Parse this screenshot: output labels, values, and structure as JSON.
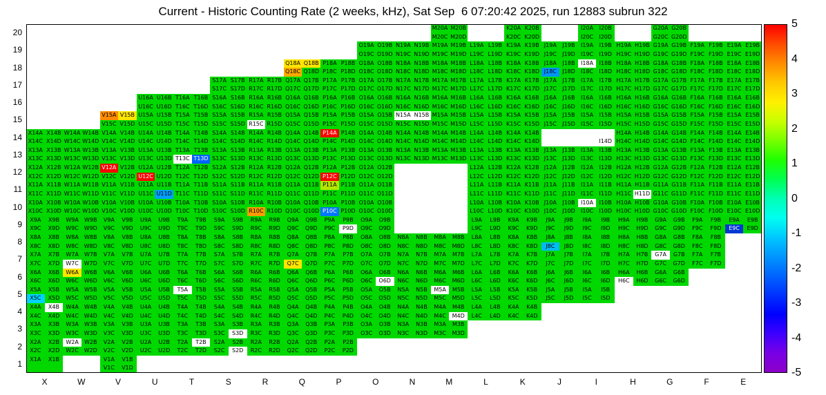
{
  "title": "Current - Historic Counting Rate (2 weeks, kHz), Sat Sep  6 07:20:42 2025, run 12883 subrun 322",
  "colors": {
    "cell_default": "#00d800",
    "background": "#ffffff",
    "frame": "#000000"
  },
  "axes": {
    "x": [
      "X",
      "W",
      "V",
      "U",
      "T",
      "S",
      "R",
      "Q",
      "P",
      "O",
      "N",
      "M",
      "L",
      "K",
      "J",
      "I",
      "H",
      "G",
      "F",
      "E"
    ],
    "y": [
      20,
      19,
      18,
      17,
      16,
      15,
      14,
      13,
      12,
      11,
      10,
      9,
      8,
      7,
      6,
      5,
      4,
      3,
      2,
      1
    ]
  },
  "suffixes": [
    "A",
    "B",
    "C",
    "D"
  ],
  "colorbar": {
    "ticks": [
      5,
      4,
      3,
      2,
      1,
      0,
      -1,
      -2,
      -3,
      -4,
      -5
    ],
    "stops": [
      "#ff0000",
      "#ff4b00",
      "#ff8c00",
      "#ffc800",
      "#fff000",
      "#c8ff00",
      "#78ff00",
      "#1eff00",
      "#00ff50",
      "#00ffb4",
      "#00fff0",
      "#00c8ff",
      "#0096ff",
      "#0064ff",
      "#0032ff",
      "#0000ff",
      "#3c00ff",
      "#7800e6",
      "#8c00c8"
    ]
  },
  "grid": {
    "rows": [
      {
        "row": 20,
        "cols": [
          "M",
          "K",
          "I",
          "G"
        ]
      },
      {
        "row": 19,
        "from": "O",
        "to": "E"
      },
      {
        "row": 18,
        "from": "Q",
        "to": "E"
      },
      {
        "row": 17,
        "from": "S",
        "to": "E"
      },
      {
        "row": 16,
        "from": "U",
        "to": "E"
      },
      {
        "row": 15,
        "from": "V",
        "to": "E"
      },
      {
        "row": 14,
        "from": "X",
        "to": "E",
        "blank_subs": [
          "J14A",
          "J14B",
          "J14C",
          "J14D",
          "I14A",
          "I14B",
          "I14C"
        ]
      },
      {
        "row": 13,
        "from": "X",
        "to": "E"
      },
      {
        "row": 12,
        "from": "X",
        "to": "E",
        "blank_cols": [
          "N",
          "M"
        ]
      },
      {
        "row": 11,
        "from": "X",
        "to": "E",
        "blank_cols": [
          "N",
          "M"
        ]
      },
      {
        "row": 10,
        "from": "X",
        "to": "E",
        "blank_cols": [
          "N",
          "M"
        ]
      },
      {
        "row": 9,
        "from": "X",
        "to": "E",
        "blank_cols": [
          "N",
          "M"
        ]
      },
      {
        "row": 8,
        "from": "X",
        "to": "F"
      },
      {
        "row": 7,
        "from": "X",
        "to": "F"
      },
      {
        "row": 6,
        "from": "X",
        "to": "G"
      },
      {
        "row": 5,
        "from": "X",
        "to": "I"
      },
      {
        "row": 4,
        "from": "X",
        "to": "K"
      },
      {
        "row": 3,
        "from": "X",
        "to": "M"
      },
      {
        "row": 2,
        "from": "X",
        "to": "P"
      },
      {
        "row": 1,
        "cols": [
          "X",
          "V"
        ],
        "unlabeled_subs": [
          "X1C",
          "X1D"
        ]
      }
    ],
    "specials": {
      "V15A": "#ff8c00",
      "V15B": "#ffe600",
      "Q18A": "#ffe600",
      "Q18B": "#ffe600",
      "Q18C": "#ffaa00",
      "W6A": "#ffe600",
      "Q7C": "#ffe600",
      "R10C": "#ff9b00",
      "P11A": "#b4e600",
      "V12A": "#ff0000",
      "U12C": "#ff0000",
      "P14A": "#ff0000",
      "P12C": "#ff0000",
      "T13D": "#0064ff",
      "U11D": "#00a0ff",
      "P10C": "#0078ff",
      "J8C": "#00bcf2",
      "J18C": "#0096ff",
      "E9C": "#0038d2",
      "X5C": "#00d2ff",
      "T13C": "#ffffff",
      "R15C": "#ffffff",
      "N15A": "#ffffff",
      "N15B": "#ffffff",
      "I18A": "#ffffff",
      "I14D": "#ffffff",
      "P9D": "#ffffff",
      "I10A": "#ffffff",
      "H11D": "#ffffff",
      "W7C": "#ffffff",
      "G7A": "#ffffff",
      "H6C": "#ffffff",
      "O6D": "#ffffff",
      "M5A": "#ffffff",
      "T5A": "#ffffff",
      "X4B": "#ffffff",
      "M4D": "#ffffff",
      "S3D": "#ffffff",
      "W2A": "#ffffff",
      "T2B": "#ffffff",
      "S2D": "#ffffff"
    }
  },
  "chart_data": {
    "type": "heatmap",
    "title": "Current - Historic Counting Rate (2 weeks, kHz), Sat Sep  6 07:20:42 2025, run 12883 subrun 322",
    "x_categories": [
      "X",
      "W",
      "V",
      "U",
      "T",
      "S",
      "R",
      "Q",
      "P",
      "O",
      "N",
      "M",
      "L",
      "K",
      "J",
      "I",
      "H",
      "G",
      "F",
      "E"
    ],
    "y_categories": [
      1,
      2,
      3,
      4,
      5,
      6,
      7,
      8,
      9,
      10,
      11,
      12,
      13,
      14,
      15,
      16,
      17,
      18,
      19,
      20
    ],
    "cell_subdivisions": [
      "A",
      "B",
      "C",
      "D"
    ],
    "colorbar_range": [
      -5,
      5
    ],
    "legend_position": "right",
    "default_value_approx": 0.5,
    "anomalies_approx": {
      "V12A": 5,
      "U12C": 5,
      "P14A": 5,
      "P12C": 5,
      "V15A": 3,
      "Q18C": 3,
      "R10C": 3,
      "V15B": 2.5,
      "Q18A": 2.5,
      "Q18B": 2.5,
      "W6A": 2.5,
      "Q7C": 2.5,
      "P11A": 1.5,
      "X5C": -1.5,
      "U11D": -2,
      "J8C": -2,
      "J18C": -2,
      "T13D": -2.5,
      "P10C": -2.5,
      "E9C": -3.5
    },
    "out_of_range_white_cells": [
      "T13C",
      "R15C",
      "N15A",
      "N15B",
      "I18A",
      "I14D",
      "P9D",
      "I10A",
      "H11D",
      "W7C",
      "G7A",
      "H6C",
      "O6D",
      "M5A",
      "T5A",
      "X4B",
      "M4D",
      "S3D",
      "W2A",
      "T2B",
      "S2D"
    ],
    "empty_cells": [
      "N9",
      "M9",
      "N10",
      "M10",
      "N11",
      "M11",
      "N12",
      "M12",
      "J14",
      "I14A",
      "I14B",
      "I14C"
    ]
  }
}
